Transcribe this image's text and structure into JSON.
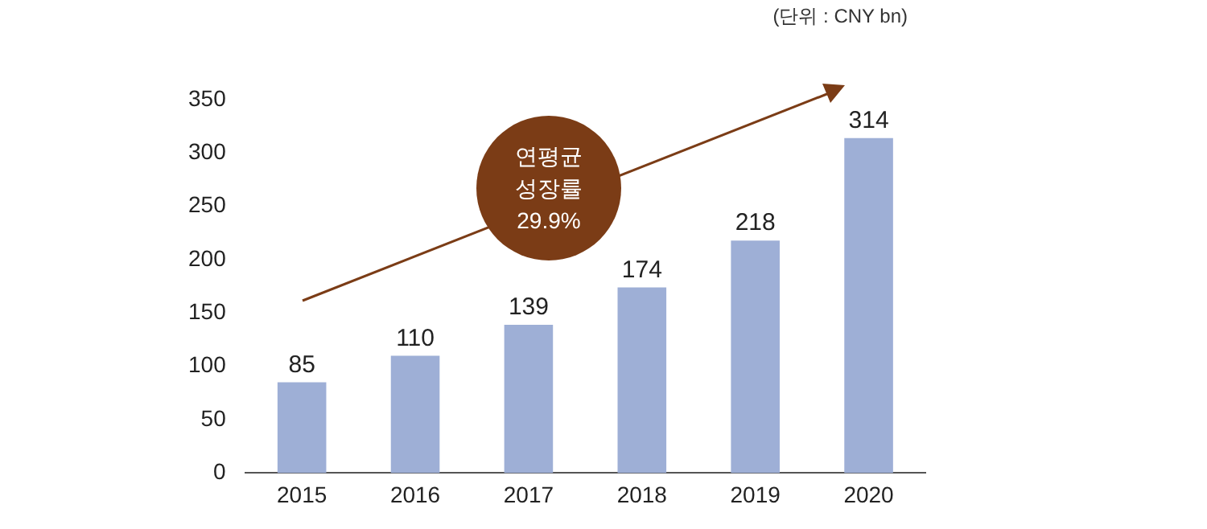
{
  "chart_data": {
    "type": "bar",
    "categories": [
      "2015",
      "2016",
      "2017",
      "2018",
      "2019",
      "2020"
    ],
    "values": [
      85,
      110,
      139,
      174,
      218,
      314
    ],
    "color": "#9eafd6",
    "ylim": [
      0,
      350
    ],
    "yticks": [
      0,
      50,
      100,
      150,
      200,
      250,
      300,
      350
    ],
    "grid": false,
    "legend": false,
    "data_labels": true,
    "annotations": [
      "(단위 : CNY bn)",
      "연평균 성장률 29.9%"
    ]
  }
}
